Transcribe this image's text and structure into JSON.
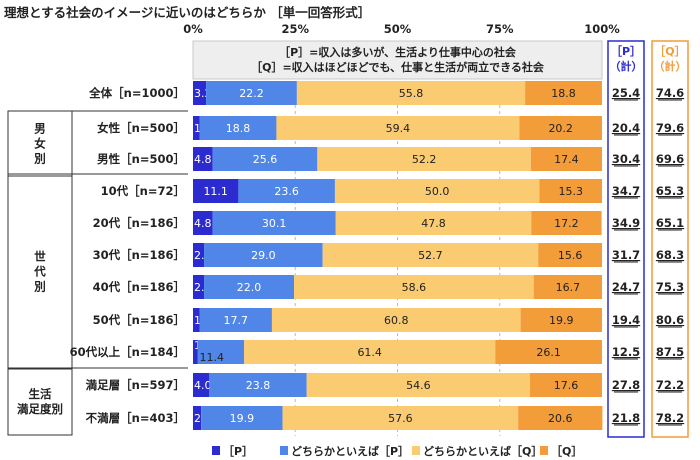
{
  "chart_data": {
    "type": "bar",
    "stacked": true,
    "orientation": "horizontal",
    "title": "理想とする社会のイメージに近いのはどちらか ［単一回答形式］",
    "x_ticks": [
      "0%",
      "25%",
      "50%",
      "75%",
      "100%"
    ],
    "xlim": [
      0,
      100
    ],
    "definitions": [
      "［P］=収入は多いが、生活より仕事中心の社会",
      "［Q］=収入はほどほどでも、仕事と生活が両立できる社会"
    ],
    "total_headers": [
      "［P］\n（計）",
      "［Q］\n（計）"
    ],
    "groups": [
      {
        "label": "男\n女\n別",
        "rows": [
          1,
          2
        ]
      },
      {
        "label": "世\n代\n別",
        "rows": [
          3,
          4,
          5,
          6,
          7,
          8
        ]
      },
      {
        "label": "生活\n満足度別",
        "rows": [
          9,
          10
        ]
      }
    ],
    "categories": [
      "全体［n=1000］",
      "女性［n=500］",
      "男性［n=500］",
      "10代［n=72］",
      "20代［n=186］",
      "30代［n=186］",
      "40代［n=186］",
      "50代［n=186］",
      "60代以上［n=184］",
      "満足層［n=597］",
      "不満層［n=403］"
    ],
    "series": [
      {
        "name": "［P］",
        "color": "#2b2bcf",
        "values": [
          3.2,
          1.6,
          4.8,
          11.1,
          4.8,
          2.7,
          2.7,
          1.6,
          1.1,
          4.0,
          2.0
        ]
      },
      {
        "name": "どちらかといえば［P］",
        "color": "#4f86e8",
        "values": [
          22.2,
          18.8,
          25.6,
          23.6,
          30.1,
          29.0,
          22.0,
          17.7,
          11.4,
          23.8,
          19.9
        ]
      },
      {
        "name": "どちらかといえば［Q］",
        "color": "#fbcb72",
        "values": [
          55.8,
          59.4,
          52.2,
          50.0,
          47.8,
          52.7,
          58.6,
          60.8,
          61.4,
          54.6,
          57.6
        ]
      },
      {
        "name": "［Q］",
        "color": "#f39c3a",
        "values": [
          18.8,
          20.2,
          17.4,
          15.3,
          17.2,
          15.6,
          16.7,
          19.9,
          26.1,
          17.6,
          20.6
        ]
      }
    ],
    "totals_p": [
      "25.4",
      "20.4",
      "30.4",
      "34.7",
      "34.9",
      "31.7",
      "24.7",
      "19.4",
      "12.5",
      "27.8",
      "21.8"
    ],
    "totals_q": [
      "74.6",
      "79.6",
      "69.6",
      "65.3",
      "65.1",
      "68.3",
      "75.3",
      "80.6",
      "87.5",
      "72.2",
      "78.2"
    ],
    "legend_position": "bottom"
  }
}
